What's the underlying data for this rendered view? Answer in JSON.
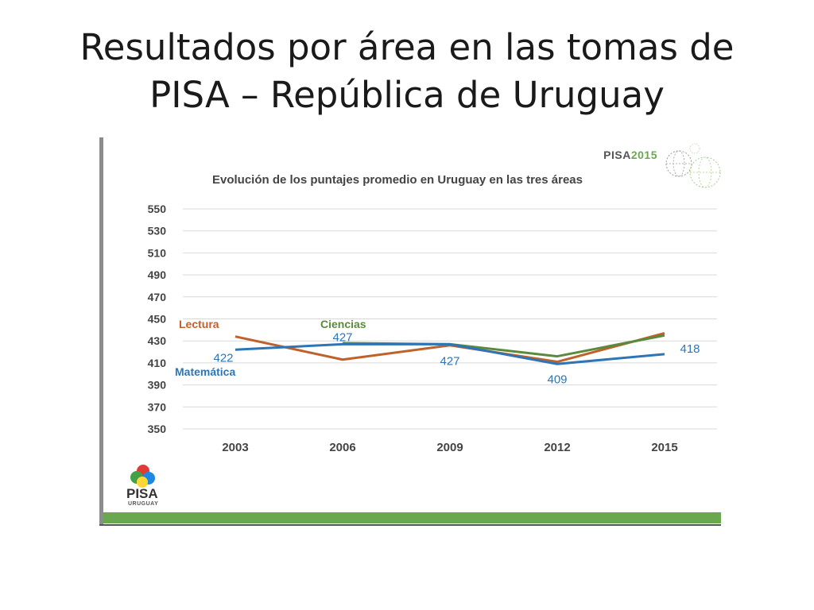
{
  "slide": {
    "title_line1": "Resultados por área en las tomas de",
    "title_line2": "PISA  – República de Uruguay"
  },
  "badge": {
    "prefix": "PISA",
    "year": "2015"
  },
  "logo": {
    "name": "PISA",
    "subtitle": "URUGUAY"
  },
  "chart_data": {
    "type": "line",
    "title": "Evolución de los puntajes promedio en Uruguay en las tres áreas",
    "categories": [
      "2003",
      "2006",
      "2009",
      "2012",
      "2015"
    ],
    "ylim": [
      350,
      550
    ],
    "yticks": [
      550,
      530,
      510,
      490,
      470,
      450,
      430,
      410,
      390,
      370,
      350
    ],
    "grid": true,
    "series": [
      {
        "name": "Lectura",
        "color": "#c0612b",
        "values": [
          434,
          413,
          426,
          411,
          437
        ]
      },
      {
        "name": "Ciencias",
        "color": "#5b8a3c",
        "values": [
          null,
          428,
          427,
          416,
          435
        ]
      },
      {
        "name": "Matemática",
        "color": "#2e75b6",
        "values": [
          422,
          427,
          427,
          409,
          418
        ]
      }
    ],
    "data_labels": [
      {
        "text": "422",
        "category": "2003",
        "value": 422
      },
      {
        "text": "427",
        "category": "2006",
        "value": 427
      },
      {
        "text": "427",
        "category": "2009",
        "value": 427
      },
      {
        "text": "409",
        "category": "2012",
        "value": 409
      },
      {
        "text": "418",
        "category": "2015",
        "value": 418
      }
    ]
  },
  "colors": {
    "accent_bar": "#6aa84f",
    "grid": "#d9d9d9"
  }
}
